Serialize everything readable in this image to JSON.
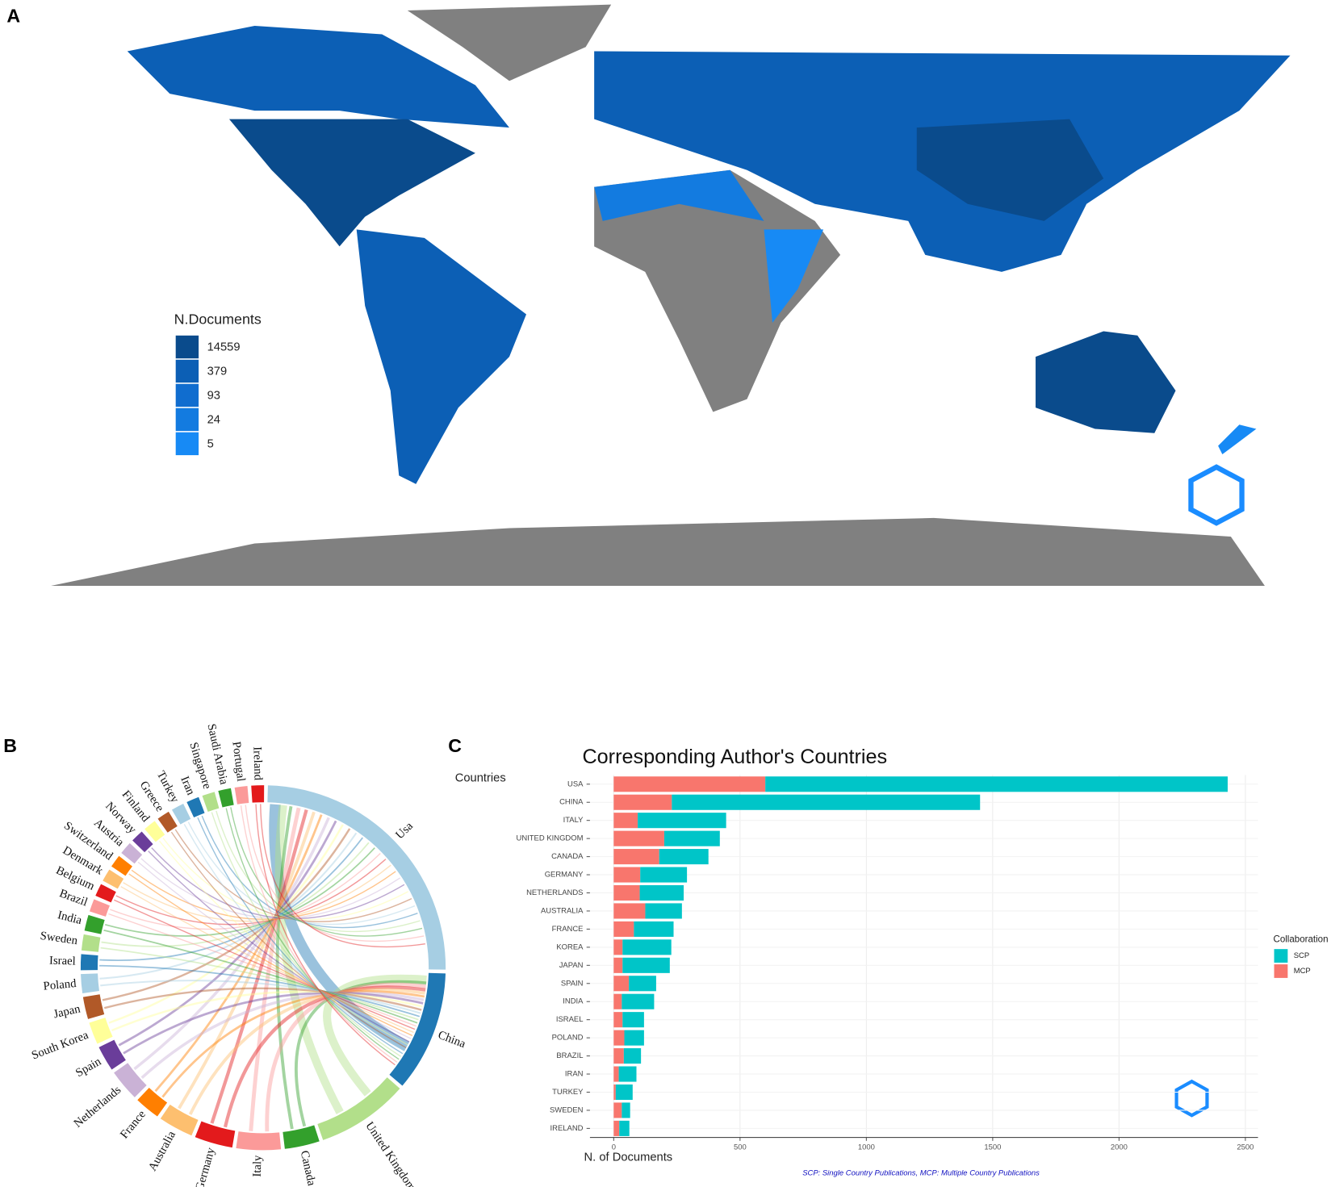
{
  "chart_data": [
    {
      "type": "map",
      "panel": "A",
      "legend_title": "N.Documents",
      "legend_values": [
        14559,
        379,
        93,
        24,
        5
      ],
      "legend_colors": [
        "#0a4b8c",
        "#0c5fb5",
        "#106dcf",
        "#137be0",
        "#178af5"
      ]
    },
    {
      "type": "chord",
      "panel": "B",
      "categories": [
        "Usa",
        "China",
        "United Kingdom",
        "Canada",
        "Italy",
        "Germany",
        "Australia",
        "France",
        "Netherlands",
        "Spain",
        "South Korea",
        "Japan",
        "Poland",
        "Israel",
        "Sweden",
        "India",
        "Brazil",
        "Belgium",
        "Denmark",
        "Switzerland",
        "Austria",
        "Norway",
        "Finland",
        "Greece",
        "Turkey",
        "Iran",
        "Singapore",
        "Saudi Arabia",
        "Portugal",
        "Ireland"
      ],
      "values": [
        88,
        38,
        29,
        11,
        14,
        12,
        11,
        8,
        10,
        8,
        7,
        7,
        6,
        5,
        5,
        5,
        4,
        4,
        4,
        4,
        4,
        4,
        4,
        4,
        4,
        4,
        4,
        4,
        4,
        4
      ],
      "colors": [
        "#a6cee3",
        "#1f78b4",
        "#b2df8a",
        "#33a02c",
        "#fb9a99",
        "#e31a1c",
        "#fdbf6f",
        "#ff7f00",
        "#cab2d6",
        "#6a3d9a",
        "#ffff99",
        "#b15928",
        "#a6cee3",
        "#1f78b4",
        "#b2df8a",
        "#33a02c",
        "#fb9a99",
        "#e31a1c",
        "#fdbf6f",
        "#ff7f00",
        "#cab2d6",
        "#6a3d9a",
        "#ffff99",
        "#b15928",
        "#a6cee3",
        "#1f78b4",
        "#b2df8a",
        "#33a02c",
        "#fb9a99",
        "#e31a1c"
      ]
    },
    {
      "type": "bar",
      "panel": "C",
      "title": "Corresponding Author's Countries",
      "y_label": "Countries",
      "x_label": "N. of Documents",
      "legend_title": "Collaboration",
      "note": "SCP: Single Country Publications, MCP: Multiple Country Publications",
      "orientation": "horizontal",
      "stacked": true,
      "grid": true,
      "categories": [
        "USA",
        "CHINA",
        "ITALY",
        "UNITED KINGDOM",
        "CANADA",
        "GERMANY",
        "NETHERLANDS",
        "AUSTRALIA",
        "FRANCE",
        "KOREA",
        "JAPAN",
        "SPAIN",
        "INDIA",
        "ISRAEL",
        "POLAND",
        "BRAZIL",
        "IRAN",
        "TURKEY",
        "SWEDEN",
        "IRELAND"
      ],
      "series": [
        {
          "name": "SCP",
          "color": "#00c5c8",
          "values": [
            1830,
            1220,
            350,
            220,
            195,
            185,
            174,
            145,
            157,
            193,
            187,
            108,
            128,
            85,
            78,
            68,
            70,
            67,
            33,
            40
          ]
        },
        {
          "name": "MCP",
          "color": "#f8766d",
          "values": [
            600,
            230,
            95,
            200,
            180,
            105,
            103,
            125,
            80,
            35,
            35,
            60,
            32,
            35,
            42,
            40,
            20,
            8,
            32,
            22
          ]
        }
      ],
      "xlim": [
        -94,
        2550
      ],
      "xticks": [
        0,
        500,
        1000,
        1500,
        2000,
        2500
      ]
    }
  ]
}
